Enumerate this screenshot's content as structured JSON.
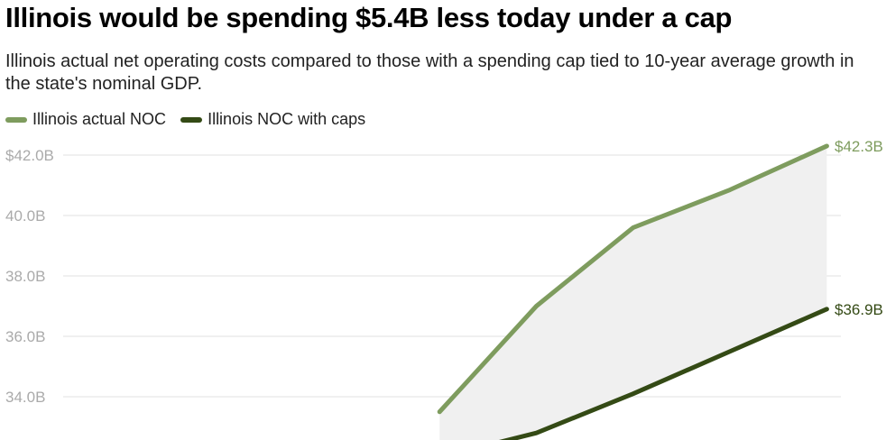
{
  "title": "Illinois would be spending $5.4B less today under a cap",
  "subtitle": "Illinois actual net operating costs compared to those with a spending cap tied to 10-year average growth in the state's nominal GDP.",
  "legend": [
    {
      "name": "Illinois actual NOC",
      "color": "#7e9c5e"
    },
    {
      "name": "Illinois NOC with caps",
      "color": "#344a15"
    }
  ],
  "chart_data": {
    "type": "line",
    "ylim": [
      32.5,
      42.3
    ],
    "yticks": [
      {
        "value": 42.0,
        "label": "$42.0B"
      },
      {
        "value": 40.0,
        "label": "40.0B"
      },
      {
        "value": 38.0,
        "label": "38.0B"
      },
      {
        "value": 36.0,
        "label": "36.0B"
      },
      {
        "value": 34.0,
        "label": "34.0B"
      }
    ],
    "x": [
      0,
      1,
      2,
      3,
      4,
      5,
      6,
      7,
      8
    ],
    "series": [
      {
        "name": "Illinois actual NOC",
        "color": "#7e9c5e",
        "values": [
          null,
          null,
          null,
          null,
          33.5,
          37.0,
          39.6,
          40.85,
          42.3
        ],
        "end_label": "$42.3B"
      },
      {
        "name": "Illinois NOC with caps",
        "color": "#344a15",
        "values": [
          null,
          null,
          null,
          null,
          32.0,
          32.8,
          34.1,
          35.5,
          36.9
        ],
        "end_label": "$36.9B"
      }
    ],
    "grid": true,
    "legend_position": "top-left"
  }
}
